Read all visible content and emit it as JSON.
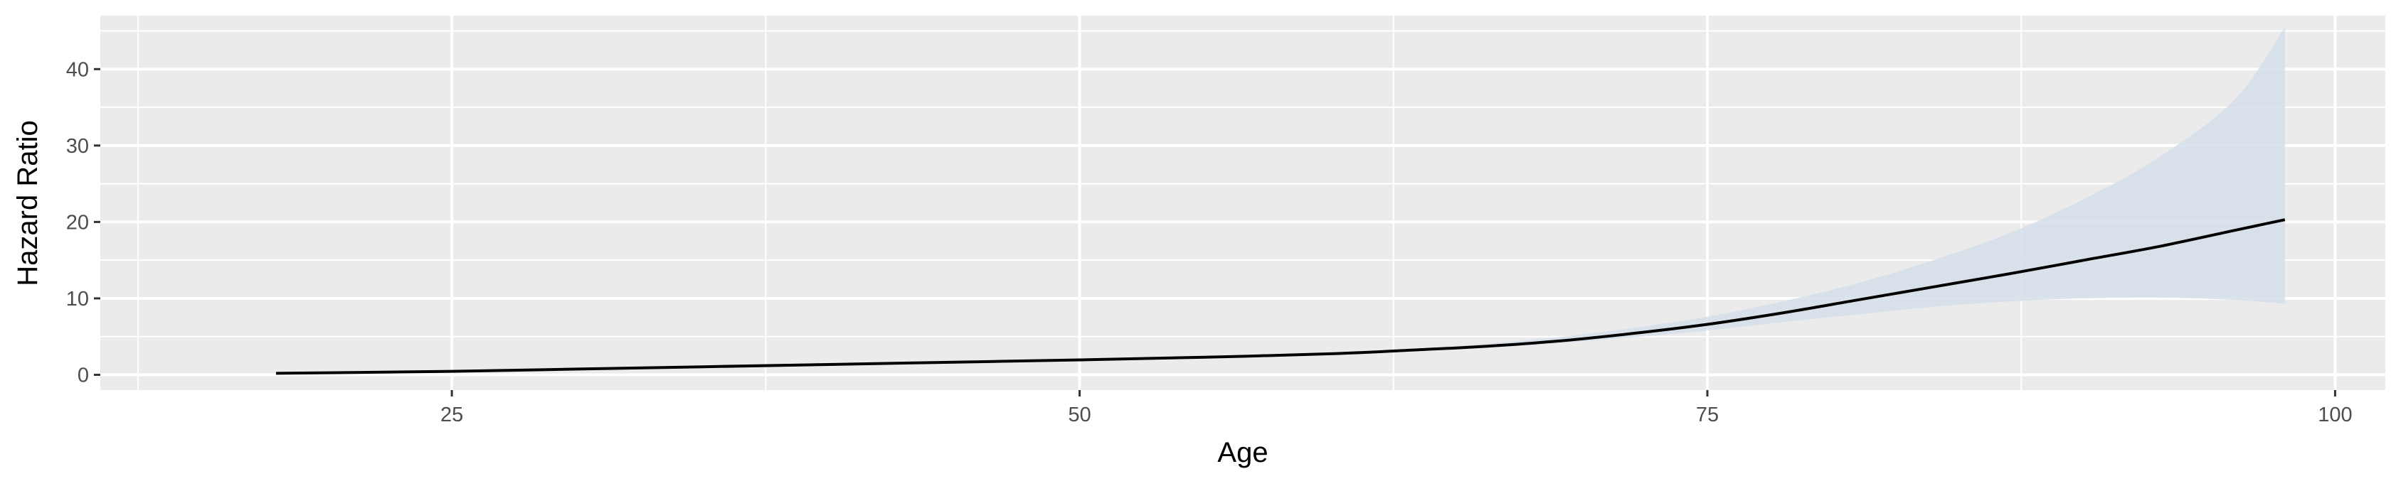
{
  "chart_data": {
    "type": "line",
    "title": "",
    "xlabel": "Age",
    "ylabel": "Hazard Ratio",
    "xlim": [
      11,
      102
    ],
    "ylim": [
      -2,
      47
    ],
    "x_ticks": [
      25,
      50,
      75,
      100
    ],
    "x_tick_labels": [
      "25",
      "50",
      "75",
      "100"
    ],
    "y_ticks": [
      0,
      10,
      20,
      30,
      40
    ],
    "y_tick_labels": [
      "0",
      "10",
      "20",
      "30",
      "40"
    ],
    "grid": true,
    "legend": "none",
    "colors": {
      "panel": "#ebebeb",
      "grid": "#ffffff",
      "line": "#000000",
      "ribbon": "#d5deea"
    },
    "series": [
      {
        "kind": "line",
        "x": [
          18,
          25,
          30,
          35,
          40,
          45,
          50,
          55,
          60,
          63,
          66,
          69,
          72,
          75,
          78,
          81,
          84,
          87,
          90,
          93,
          96,
          98
        ],
        "y": [
          0.2,
          0.45,
          0.75,
          1.05,
          1.35,
          1.65,
          1.95,
          2.3,
          2.75,
          3.2,
          3.7,
          4.4,
          5.4,
          6.6,
          8.1,
          9.8,
          11.5,
          13.2,
          15.0,
          16.8,
          18.9,
          20.3
        ]
      },
      {
        "kind": "ribbon",
        "x": [
          63,
          66,
          69,
          72,
          75,
          78,
          81,
          84,
          87,
          90,
          93,
          96,
          98
        ],
        "lower": [
          3.0,
          3.5,
          4.1,
          4.9,
          5.8,
          6.9,
          7.9,
          8.9,
          9.6,
          10.0,
          10.1,
          9.8,
          9.3
        ],
        "upper": [
          3.4,
          4.0,
          4.9,
          6.1,
          7.6,
          9.6,
          12.0,
          15.0,
          18.5,
          23.0,
          28.5,
          36.0,
          45.5
        ]
      }
    ]
  }
}
